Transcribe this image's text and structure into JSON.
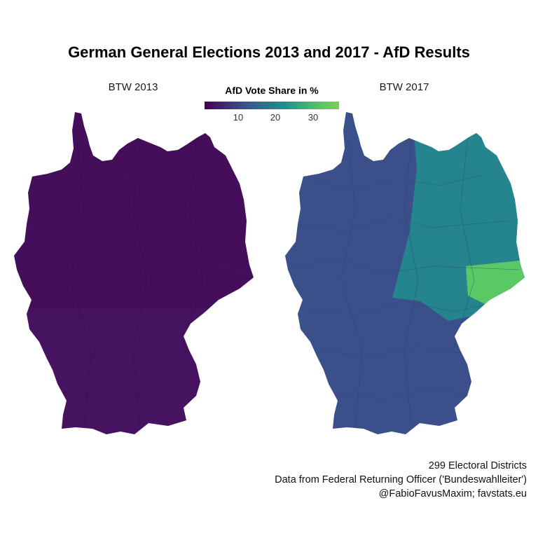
{
  "title": "German General Elections 2013 and 2017 - AfD Results",
  "panels": [
    {
      "label": "BTW 2013",
      "fill_north": "#440e5a",
      "fill_south": "#45135f"
    },
    {
      "label": "BTW 2017",
      "fill_west": "#3b4f8a",
      "fill_east": "#25858e",
      "fill_saxony": "#5ac864"
    }
  ],
  "legend": {
    "title": "AfD Vote Share in %",
    "ticks": [
      "10",
      "20",
      "30"
    ],
    "colors": [
      "#440154",
      "#3b528b",
      "#21908c",
      "#5dc863",
      "#7ad151"
    ]
  },
  "caption": [
    "299 Electoral Districts",
    "Data from Federal Returning Officer ('Bundeswahlleiter')",
    "@FabioFavusMaxim; favstats.eu"
  ]
}
